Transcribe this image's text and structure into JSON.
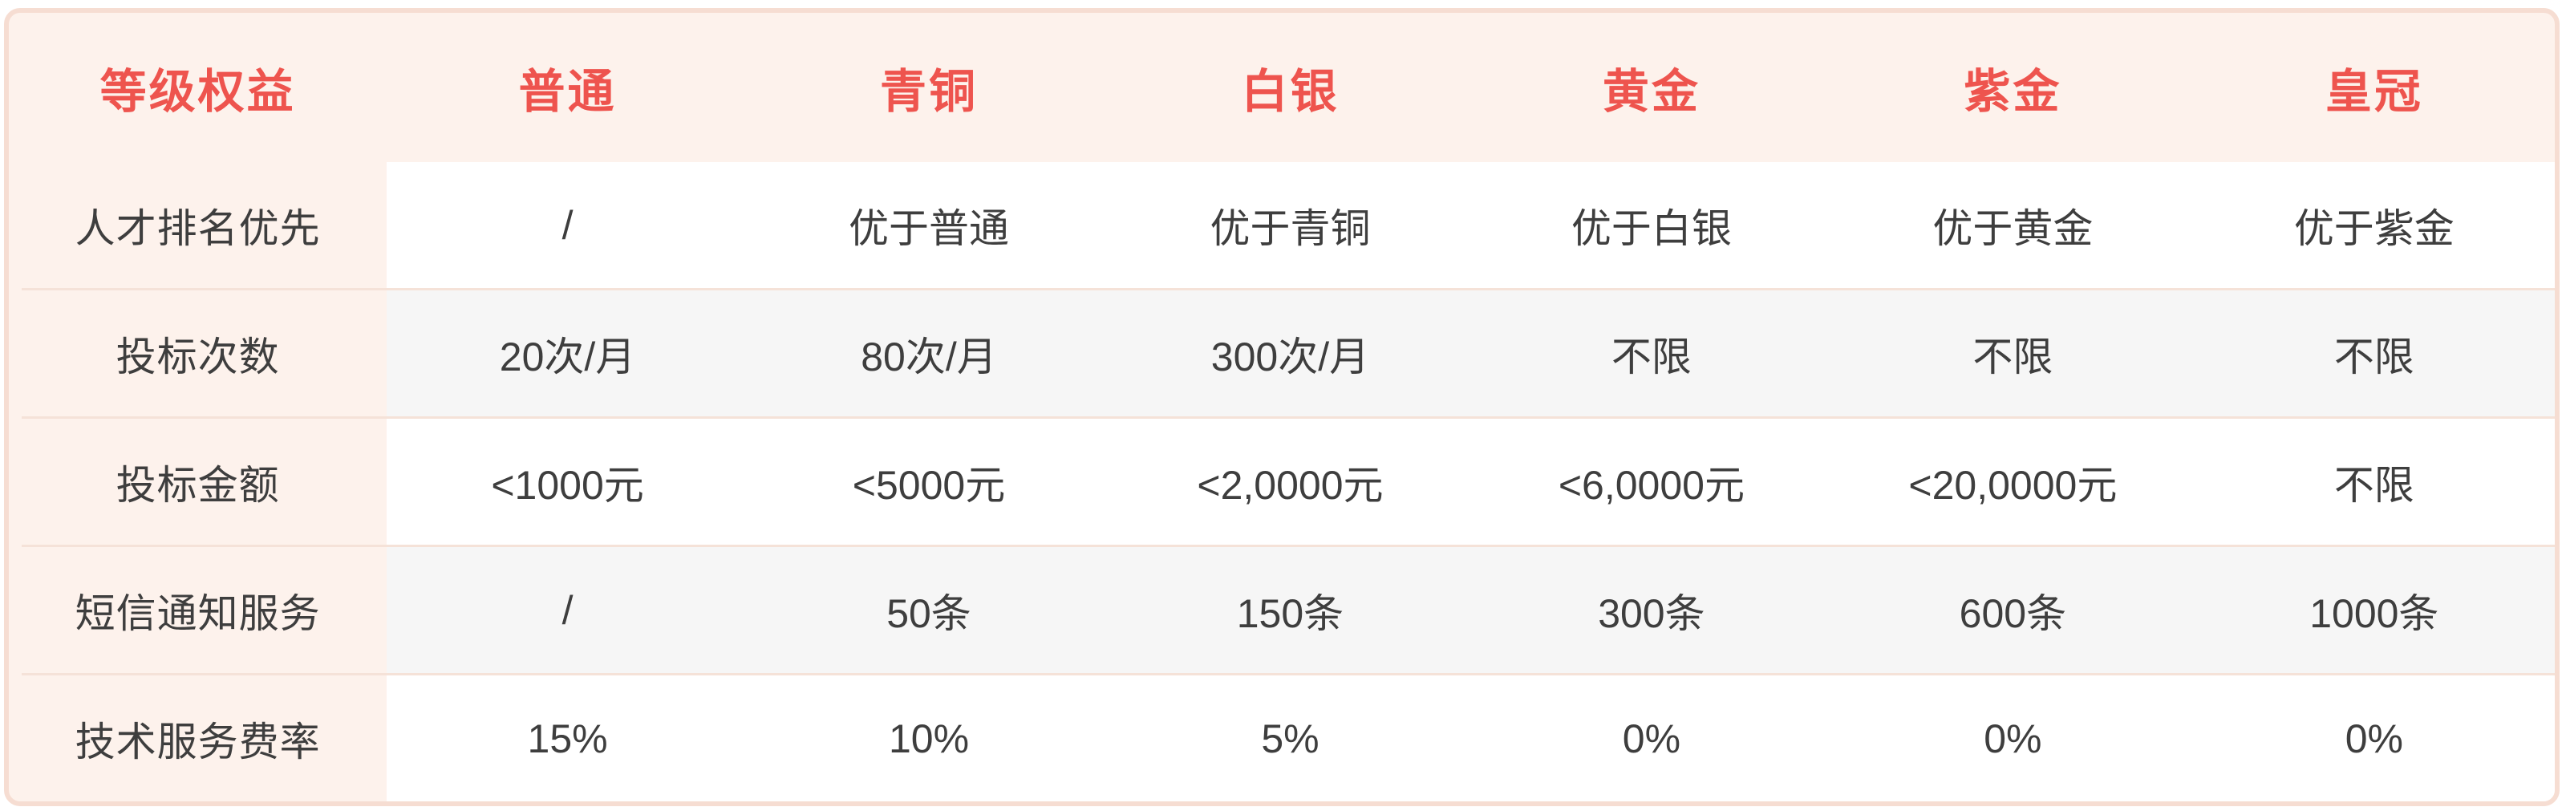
{
  "table": {
    "corner_header": "等级权益",
    "tiers": [
      "普通",
      "青铜",
      "白银",
      "黄金",
      "紫金",
      "皇冠"
    ],
    "rows": [
      {
        "label": "人才排名优先",
        "values": [
          "/",
          "优于普通",
          "优于青铜",
          "优于白银",
          "优于黄金",
          "优于紫金"
        ]
      },
      {
        "label": "投标次数",
        "values": [
          "20次/月",
          "80次/月",
          "300次/月",
          "不限",
          "不限",
          "不限"
        ]
      },
      {
        "label": "投标金额",
        "values": [
          "<1000元",
          "<5000元",
          "<2,0000元",
          "<6,0000元",
          "<20,0000元",
          "不限"
        ]
      },
      {
        "label": "短信通知服务",
        "values": [
          "/",
          "50条",
          "150条",
          "300条",
          "600条",
          "1000条"
        ]
      },
      {
        "label": "技术服务费率",
        "values": [
          "15%",
          "10%",
          "5%",
          "0%",
          "0%",
          "0%"
        ]
      }
    ]
  },
  "colors": {
    "accent_red": "#ee544e",
    "card_bg": "#fdf2ec",
    "border_pink": "#f6ddd2",
    "divider_pink": "#f5e2d8",
    "row_alt_gray": "#f6f6f6",
    "row_white": "#ffffff",
    "text_dark": "#3e3e3e",
    "page_bg": "#ffffff"
  }
}
